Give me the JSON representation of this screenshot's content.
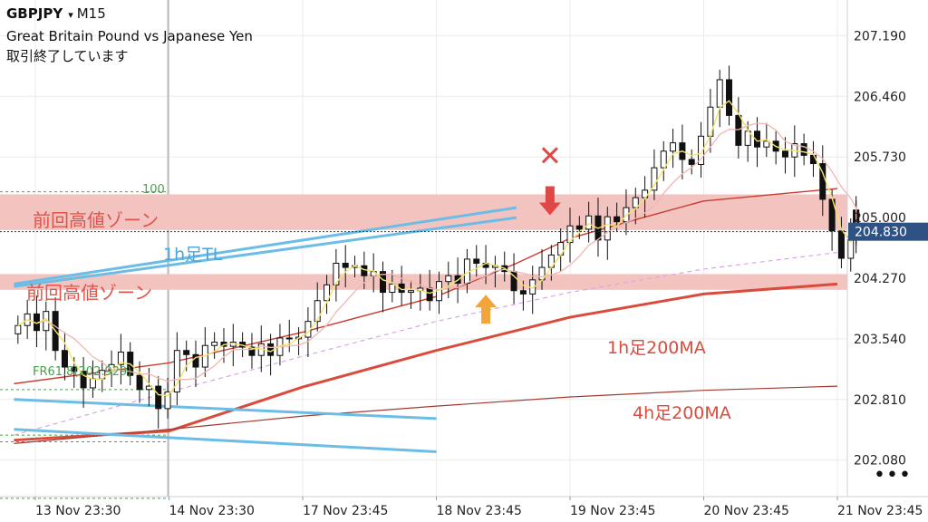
{
  "header": {
    "symbol": "GBPJPY",
    "dropdown_glyph": "▾",
    "timeframe": "M15",
    "description": "Great Britain Pound vs Japanese Yen",
    "status": "取引終了しています"
  },
  "more_label": "•••",
  "chart_data": {
    "type": "candlestick",
    "y_ticks": [
      "207.190",
      "206.460",
      "205.730",
      "205.000",
      "204.270",
      "203.540",
      "202.810",
      "202.080"
    ],
    "ylim": [
      201.64,
      207.62
    ],
    "current_price": "204.830",
    "x_ticks": [
      "13 Nov 23:30",
      "14 Nov 23:30",
      "17 Nov 23:45",
      "18 Nov 23:45",
      "19 Nov 23:45",
      "20 Nov 23:45",
      "21 Nov 23:45"
    ],
    "x_tick_index": [
      0,
      1,
      2,
      3,
      4,
      5,
      6
    ],
    "xlim": [
      -0.16,
      6.15
    ],
    "zones": [
      {
        "label": "前回高値ゾーン",
        "y_low": 204.85,
        "y_high": 205.28
      },
      {
        "label": "前回高値ゾーン",
        "y_low": 204.13,
        "y_high": 204.32
      }
    ],
    "fib": [
      {
        "label": "100",
        "y": 205.31
      },
      {
        "label": "FR61.8(202.929)",
        "y": 202.929
      }
    ],
    "trendlines": [
      {
        "label": "1h足TL",
        "color": "#6cbde6",
        "x1": -0.16,
        "y1": 204.2,
        "x2": 3.6,
        "y2": 205.12
      },
      {
        "label": "",
        "color": "#6cbde6",
        "x1": -0.16,
        "y1": 204.17,
        "x2": 3.6,
        "y2": 205.0
      },
      {
        "label": "",
        "color": "#6cbde6",
        "x1": -0.16,
        "y1": 202.81,
        "x2": 3.0,
        "y2": 202.58
      },
      {
        "label": "",
        "color": "#6cbde6",
        "x1": -0.16,
        "y1": 202.45,
        "x2": 3.0,
        "y2": 202.18
      }
    ],
    "moving_averages": [
      {
        "label": "1h足200MA",
        "color": "#cc3a2e",
        "width": 1.4,
        "x": [
          -0.16,
          1.0,
          2.0,
          3.0,
          3.6,
          4.0,
          4.5,
          5.0,
          6.0
        ],
        "y": [
          203.0,
          203.25,
          203.62,
          204.05,
          204.45,
          204.75,
          204.98,
          205.2,
          205.35
        ]
      },
      {
        "label": "4h足200MA",
        "color": "#d94b3c",
        "width": 3,
        "x": [
          -0.16,
          1.0,
          2.0,
          3.0,
          4.0,
          5.0,
          6.0
        ],
        "y": [
          202.32,
          202.43,
          202.96,
          203.4,
          203.8,
          204.08,
          204.2
        ]
      },
      {
        "label": "",
        "color": "#a33a30",
        "width": 1.2,
        "x": [
          -0.16,
          1.0,
          2.0,
          3.0,
          4.0,
          5.0,
          6.0
        ],
        "y": [
          202.28,
          202.45,
          202.61,
          202.73,
          202.84,
          202.92,
          202.97
        ]
      },
      {
        "label": "",
        "color": "#d8a6e6",
        "width": 1.2,
        "dash": true,
        "x": [
          -0.16,
          1.0,
          2.0,
          3.0,
          4.0,
          5.0,
          6.0
        ],
        "y": [
          202.38,
          202.9,
          203.33,
          203.75,
          204.1,
          204.38,
          204.58
        ]
      }
    ],
    "markers": [
      {
        "type": "cross",
        "x": 3.85,
        "y": 205.75,
        "color": "#e04848"
      },
      {
        "type": "arrow-down",
        "x": 3.85,
        "y": 205.05,
        "color": "#e04848"
      },
      {
        "type": "arrow-up",
        "x": 3.37,
        "y": 204.05,
        "color": "#f2a53a"
      }
    ],
    "candles_close": [
      203.7,
      203.84,
      203.64,
      203.87,
      203.4,
      203.2,
      203.15,
      202.95,
      203.06,
      203.16,
      203.23,
      203.38,
      203.1,
      202.93,
      202.97,
      202.7,
      202.9,
      203.4,
      203.35,
      203.2,
      203.46,
      203.5,
      203.45,
      203.5,
      203.44,
      203.34,
      203.48,
      203.34,
      203.55,
      203.54,
      203.56,
      203.75,
      204.0,
      204.19,
      204.45,
      204.4,
      204.42,
      204.3,
      204.35,
      204.1,
      204.2,
      204.1,
      204.12,
      204.15,
      204.0,
      204.23,
      204.3,
      204.21,
      204.5,
      204.45,
      204.4,
      204.42,
      204.35,
      204.12,
      204.08,
      204.25,
      204.4,
      204.55,
      204.7,
      204.9,
      204.86,
      205.02,
      204.73,
      205.01,
      204.95,
      205.12,
      205.24,
      205.33,
      205.6,
      205.8,
      205.9,
      205.7,
      205.64,
      205.98,
      206.33,
      206.66,
      206.23,
      205.87,
      206.04,
      205.85,
      205.92,
      205.8,
      205.73,
      205.89,
      205.75,
      205.65,
      205.22,
      204.84,
      204.51,
      204.77,
      205.09,
      204.9,
      204.91,
      204.85
    ],
    "candles_x": [
      -0.13,
      -0.06,
      0.01,
      0.08,
      0.15,
      0.22,
      0.29,
      0.36,
      0.43,
      0.5,
      0.57,
      0.64,
      0.71,
      0.78,
      0.85,
      0.92,
      0.99,
      1.06,
      1.13,
      1.2,
      1.27,
      1.34,
      1.41,
      1.48,
      1.55,
      1.62,
      1.69,
      1.76,
      1.83,
      1.9,
      1.97,
      2.04,
      2.11,
      2.18,
      2.25,
      2.32,
      2.39,
      2.46,
      2.53,
      2.6,
      2.67,
      2.74,
      2.81,
      2.88,
      2.95,
      3.02,
      3.09,
      3.16,
      3.23,
      3.3,
      3.37,
      3.44,
      3.51,
      3.58,
      3.65,
      3.72,
      3.79,
      3.86,
      3.93,
      4.0,
      4.07,
      4.14,
      4.21,
      4.28,
      4.35,
      4.42,
      4.49,
      4.56,
      4.63,
      4.7,
      4.77,
      4.84,
      4.91,
      4.98,
      5.05,
      5.12,
      5.19,
      5.26,
      5.33,
      5.4,
      5.47,
      5.54,
      5.61,
      5.68,
      5.75,
      5.82,
      5.89,
      5.96,
      6.03,
      6.1,
      6.14,
      6.14,
      6.14,
      6.14
    ]
  },
  "colors": {
    "zone_fill": "#f3c3c0",
    "zone_text": "#e2534a",
    "tl_text": "#4aa6dc",
    "ma_text": "#d94b3c",
    "price_box": "#2f5285",
    "fib": "#49a349",
    "candle": "#111111",
    "grid": "#ebebeb"
  }
}
